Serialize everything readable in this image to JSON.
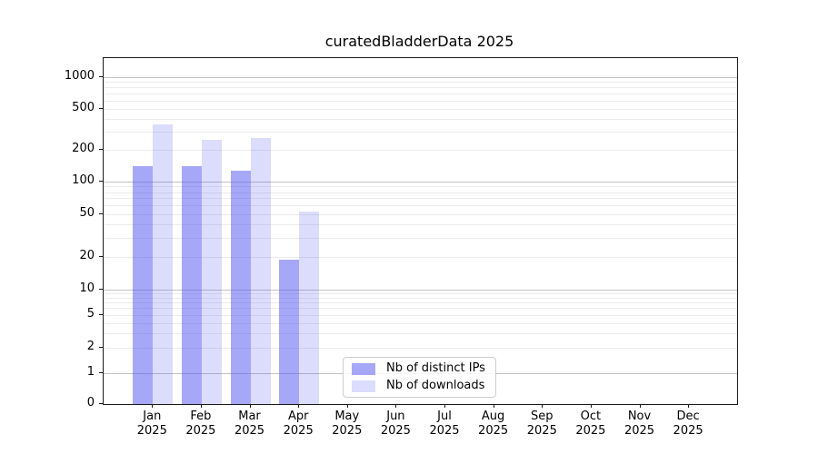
{
  "chart_data": {
    "type": "bar",
    "title": "curatedBladderData 2025",
    "scale": "symlog",
    "grid": "both",
    "legend_position": "lower center",
    "year": "2025",
    "months": [
      "Jan",
      "Feb",
      "Mar",
      "Apr",
      "May",
      "Jun",
      "Jul",
      "Aug",
      "Sep",
      "Oct",
      "Nov",
      "Dec"
    ],
    "categories": [
      "Jan 2025",
      "Feb 2025",
      "Mar 2025",
      "Apr 2025",
      "May 2025",
      "Jun 2025",
      "Jul 2025",
      "Aug 2025",
      "Sep 2025",
      "Oct 2025",
      "Nov 2025",
      "Dec 2025"
    ],
    "series": [
      {
        "name": "Nb of distinct IPs",
        "color": "rgba(80,80,240,0.5)",
        "values": [
          141,
          141,
          128,
          19,
          0,
          0,
          0,
          0,
          0,
          0,
          0,
          0
        ]
      },
      {
        "name": "Nb of downloads",
        "color": "rgba(80,80,240,0.2)",
        "values": [
          350,
          250,
          262,
          53,
          0,
          0,
          0,
          0,
          0,
          0,
          0,
          0
        ]
      }
    ],
    "yticks": [
      0,
      1,
      2,
      5,
      10,
      20,
      50,
      100,
      200,
      500,
      1000
    ],
    "ylim": [
      0,
      1100
    ],
    "xlabel": "",
    "ylabel": ""
  }
}
